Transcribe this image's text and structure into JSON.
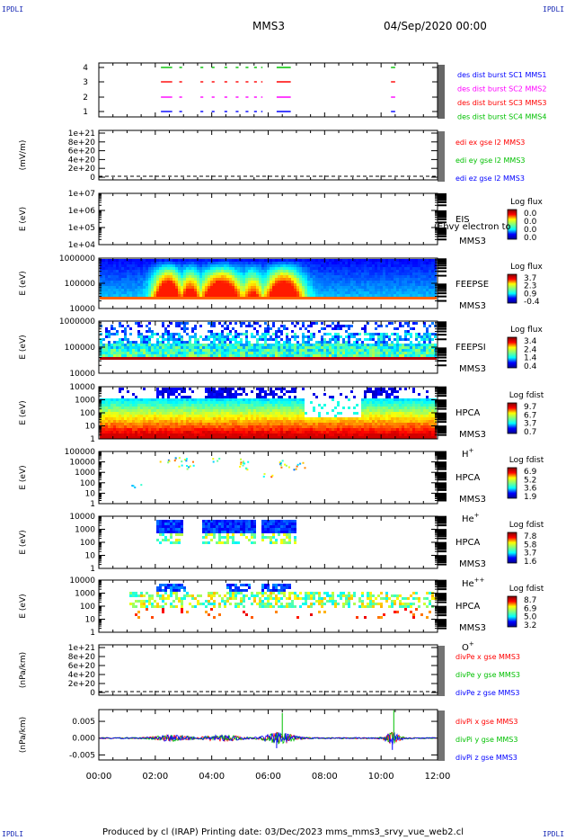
{
  "corner_label": "IPDLI",
  "header": {
    "spacecraft": "MMS3",
    "date": "04/Sep/2020 00:00"
  },
  "footer": {
    "text": "Produced by cl (IRAP)   Printing date: 03/Dec/2023   mms_mms3_srvy_vue_web2.cl"
  },
  "colors": {
    "sc1": "#0000ff",
    "sc2": "#ff0000",
    "sc3": "#ff00ff",
    "sc4": "#00c000"
  },
  "x_ticks": [
    "00:00",
    "02:00",
    "04:00",
    "06:00",
    "08:00",
    "10:00",
    "12:00"
  ],
  "chart_data": [
    {
      "type": "scatter",
      "panel": "availability",
      "yticks": [
        "1",
        "2",
        "3",
        "4"
      ],
      "legend": [
        "des dist burst SC1 MMS1",
        "des dist burst SC2 MMS2",
        "des dist burst SC3 MMS3",
        "des dist burst SC4 MMS4"
      ],
      "legend_colors": [
        "#0000ff",
        "#ff00ff",
        "#ff0000",
        "#00c000"
      ],
      "segments_hours": [
        [
          2.2,
          2.6
        ],
        [
          2.85,
          2.95
        ],
        [
          3.6,
          3.7
        ],
        [
          4.0,
          4.1
        ],
        [
          4.45,
          4.55
        ],
        [
          4.85,
          4.95
        ],
        [
          5.2,
          5.3
        ],
        [
          5.5,
          5.6
        ],
        [
          5.75,
          5.8
        ],
        [
          6.3,
          6.8
        ],
        [
          10.35,
          10.5
        ]
      ]
    },
    {
      "type": "line",
      "panel": "edi-electric-field",
      "ylabel": "(mV/m)",
      "yticks": [
        "0",
        "2e+20",
        "4e+20",
        "6e+20",
        "8e+20",
        "1e+21"
      ],
      "series": [
        {
          "name": "edi ex gse l2 MMS3",
          "color": "#ff0000"
        },
        {
          "name": "edi ey gse l2 MMS3",
          "color": "#00c000"
        },
        {
          "name": "edi ez gse l2 MMS3",
          "color": "#0000ff"
        }
      ]
    },
    {
      "type": "heatmap",
      "panel": "EIS",
      "ylabel": "E (eV)",
      "yticks": [
        "1e+04",
        "1e+05",
        "1e+06",
        "1e+07"
      ],
      "labels": [
        "EIS",
        "MMS3"
      ],
      "overlay_text": "(Ehvy electron to",
      "colorbar_title": "Log flux",
      "colorbar_ticks": [
        "0.0",
        "0.0",
        "0.0",
        "0.0"
      ]
    },
    {
      "type": "heatmap",
      "panel": "FEEPSE",
      "ylabel": "E (eV)",
      "yticks": [
        "10000",
        "100000",
        "1000000"
      ],
      "labels": [
        "FEEPSE",
        "MMS3"
      ],
      "colorbar_title": "Log flux",
      "colorbar_ticks": [
        "3.7",
        "2.3",
        "0.9",
        "-0.4"
      ]
    },
    {
      "type": "heatmap",
      "panel": "FEEPSI",
      "ylabel": "E (eV)",
      "yticks": [
        "10000",
        "100000",
        "1000000"
      ],
      "labels": [
        "FEEPSI",
        "MMS3"
      ],
      "colorbar_title": "Log flux",
      "colorbar_ticks": [
        "3.4",
        "2.4",
        "1.4",
        "0.4"
      ]
    },
    {
      "type": "heatmap",
      "panel": "HPCA-H+",
      "ylabel": "E (eV)",
      "yticks": [
        "1",
        "10",
        "100",
        "1000",
        "10000"
      ],
      "labels": [
        "HPCA",
        "MMS3",
        "H"
      ],
      "species_sup": "+",
      "colorbar_title": "Log fdist",
      "colorbar_ticks": [
        "9.7",
        "6.7",
        "3.7",
        "0.7"
      ]
    },
    {
      "type": "heatmap",
      "panel": "HPCA-He+",
      "ylabel": "E (eV)",
      "yticks": [
        "1",
        "10",
        "100",
        "1000",
        "10000",
        "100000"
      ],
      "labels": [
        "HPCA",
        "MMS3",
        "He"
      ],
      "species_sup": "+",
      "colorbar_title": "Log fdist",
      "colorbar_ticks": [
        "6.9",
        "5.2",
        "3.6",
        "1.9"
      ]
    },
    {
      "type": "heatmap",
      "panel": "HPCA-He++",
      "ylabel": "E (eV)",
      "yticks": [
        "1",
        "10",
        "100",
        "1000",
        "10000"
      ],
      "labels": [
        "HPCA",
        "MMS3",
        "He"
      ],
      "species_sup": "++",
      "colorbar_title": "Log fdist",
      "colorbar_ticks": [
        "7.8",
        "5.8",
        "3.7",
        "1.6"
      ]
    },
    {
      "type": "heatmap",
      "panel": "HPCA-O+",
      "ylabel": "E (eV)",
      "yticks": [
        "1",
        "10",
        "100",
        "1000",
        "10000"
      ],
      "labels": [
        "HPCA",
        "MMS3",
        "O"
      ],
      "species_sup": "+",
      "colorbar_title": "Log fdist",
      "colorbar_ticks": [
        "8.7",
        "6.9",
        "5.0",
        "3.2"
      ]
    },
    {
      "type": "line",
      "panel": "divPe",
      "ylabel": "(nPa/km)",
      "yticks": [
        "0",
        "2e+20",
        "4e+20",
        "6e+20",
        "8e+20",
        "1e+21"
      ],
      "series": [
        {
          "name": "divPe x gse MMS3",
          "color": "#ff0000"
        },
        {
          "name": "divPe y gse MMS3",
          "color": "#00c000"
        },
        {
          "name": "divPe z gse MMS3",
          "color": "#0000ff"
        }
      ]
    },
    {
      "type": "line",
      "panel": "divPi",
      "ylabel": "(nPa/km)",
      "yticks": [
        "-0.005",
        "0.000",
        "0.005"
      ],
      "ylim": [
        -0.0065,
        0.0085
      ],
      "series": [
        {
          "name": "divPi x gse MMS3",
          "color": "#ff0000"
        },
        {
          "name": "divPi y gse MMS3",
          "color": "#00c000"
        },
        {
          "name": "divPi z gse MMS3",
          "color": "#0000ff"
        }
      ],
      "spikes": [
        {
          "t": 6.5,
          "v": 0.0075,
          "color": "#00c000"
        },
        {
          "t": 10.45,
          "v": 0.0083,
          "color": "#00c000"
        },
        {
          "t": 10.4,
          "v": -0.0035,
          "color": "#0000ff"
        },
        {
          "t": 6.3,
          "v": -0.003,
          "color": "#0000ff"
        }
      ]
    }
  ]
}
